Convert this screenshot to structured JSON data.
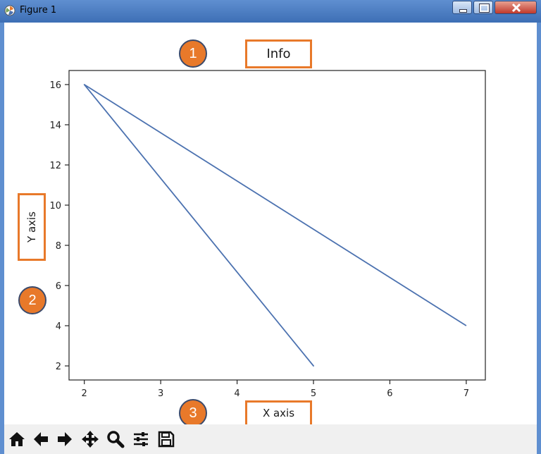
{
  "window": {
    "title": "Figure 1"
  },
  "annotations": [
    {
      "number": "1"
    },
    {
      "number": "2"
    },
    {
      "number": "3"
    }
  ],
  "chart_data": {
    "type": "line",
    "title": "Info",
    "xlabel": "X axis",
    "ylabel": "Y axis",
    "xlim": [
      1.8,
      7.25
    ],
    "ylim": [
      1.3,
      16.7
    ],
    "xticks": [
      2,
      3,
      4,
      5,
      6,
      7
    ],
    "yticks": [
      2,
      4,
      6,
      8,
      10,
      12,
      14,
      16
    ],
    "series": [
      {
        "x": [
          2,
          5,
          2,
          7
        ],
        "y": [
          16,
          2,
          16,
          4
        ],
        "color": "#4c72b0"
      }
    ],
    "grid": false
  },
  "toolbar": {
    "tools": [
      "home-icon",
      "back-arrow-icon",
      "forward-arrow-icon",
      "pan-icon",
      "zoom-icon",
      "configure-subplots-icon",
      "save-icon"
    ]
  },
  "colors": {
    "accent": "#e8792a",
    "line": "#4c72b0",
    "titlebar": "#5f8fd0"
  }
}
